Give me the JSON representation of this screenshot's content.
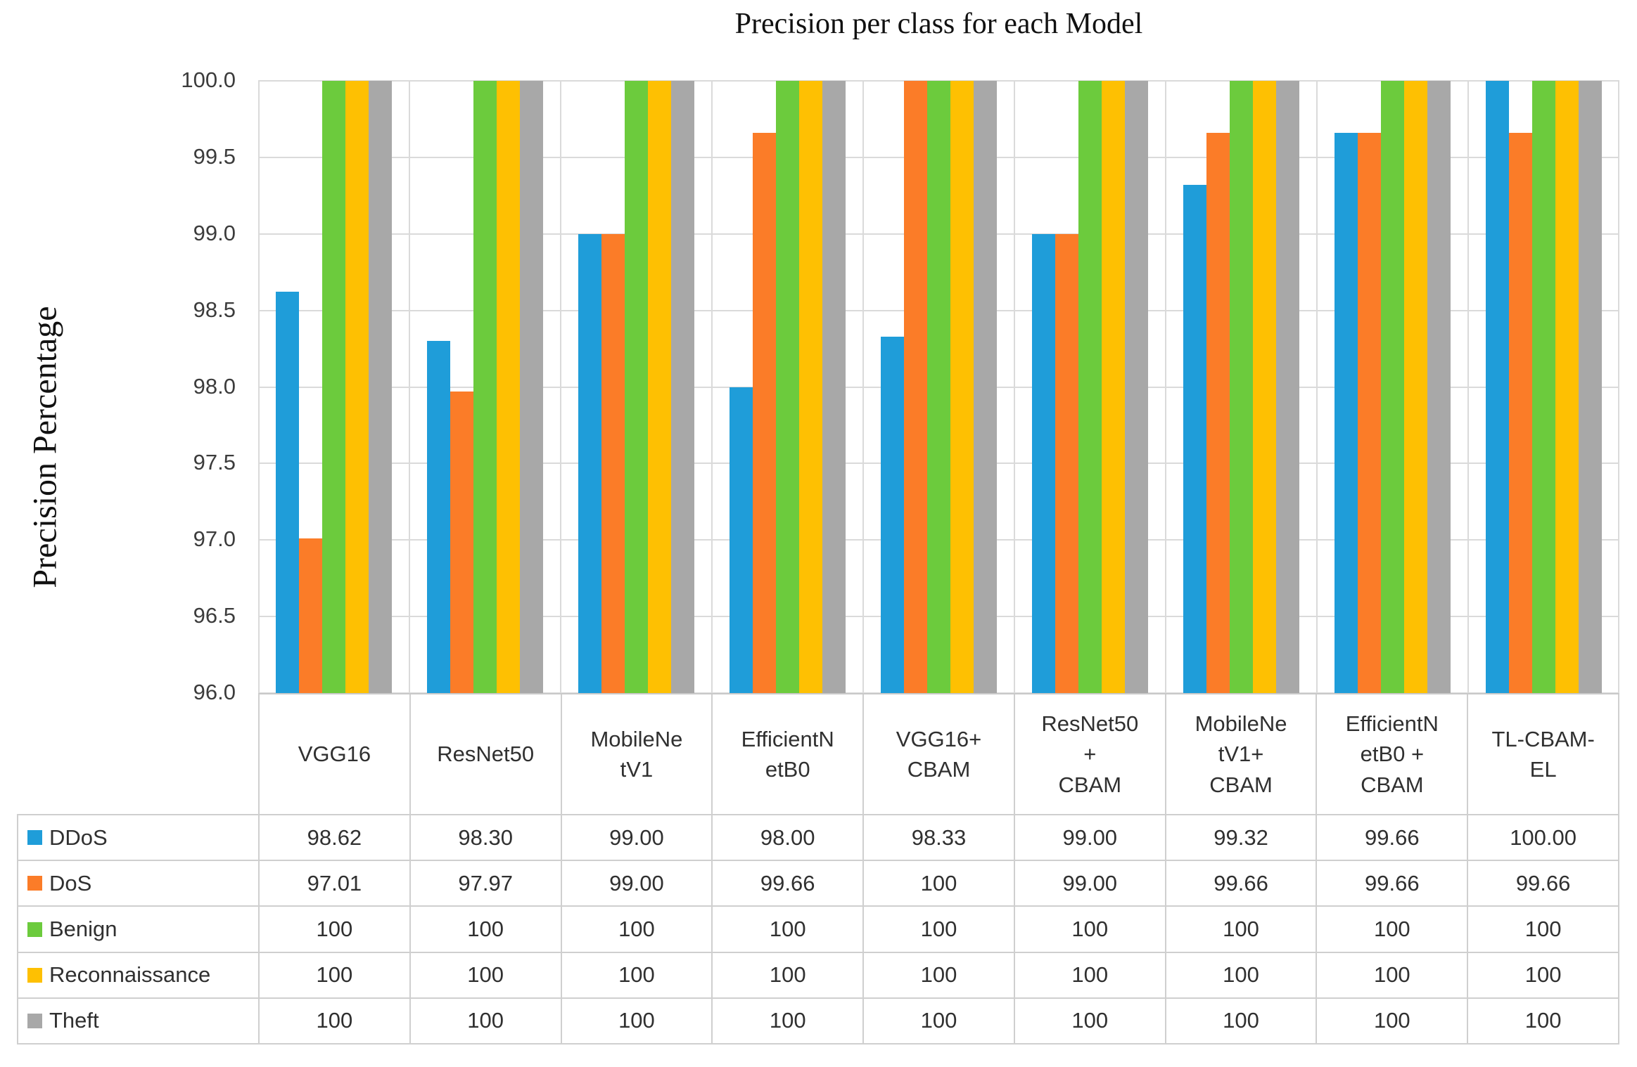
{
  "title": "Precision per class for each Model",
  "y_axis": {
    "label": "Precision Percentage",
    "min": 96.0,
    "max": 100.0,
    "tick_step": 0.5,
    "ticks": [
      "100.0",
      "99.5",
      "99.0",
      "98.5",
      "98.0",
      "97.5",
      "97.0",
      "96.5",
      "96.0"
    ]
  },
  "chart_data": {
    "type": "bar",
    "title": "Precision per class for each Model",
    "xlabel": "",
    "ylabel": "Precision Percentage",
    "ylim": [
      96.0,
      100.0
    ],
    "grid": true,
    "legend_position": "table-left",
    "categories": [
      "VGG16",
      "ResNet50",
      "MobileNetV1",
      "EfficientNetB0",
      "VGG16+CBAM",
      "ResNet50 + CBAM",
      "MobileNetV1+ CBAM",
      "EfficientNetB0 + CBAM",
      "TL-CBAM-EL"
    ],
    "category_display": [
      "VGG16",
      "ResNet50",
      "MobileNe\ntV1",
      "EfficientN\netB0",
      "VGG16+\nCBAM",
      "ResNet50\n+\nCBAM",
      "MobileNe\ntV1+\nCBAM",
      "EfficientN\netB0 +\nCBAM",
      "TL-CBAM-\nEL"
    ],
    "series": [
      {
        "name": "DDoS",
        "color": "#1f9dd9",
        "values": [
          98.62,
          98.3,
          99.0,
          98.0,
          98.33,
          99.0,
          99.32,
          99.66,
          100.0
        ],
        "display": [
          "98.62",
          "98.30",
          "99.00",
          "98.00",
          "98.33",
          "99.00",
          "99.32",
          "99.66",
          "100.00"
        ]
      },
      {
        "name": "DoS",
        "color": "#fb7c28",
        "values": [
          97.01,
          97.97,
          99.0,
          99.66,
          100,
          99.0,
          99.66,
          99.66,
          99.66
        ],
        "display": [
          "97.01",
          "97.97",
          "99.00",
          "99.66",
          "100",
          "99.00",
          "99.66",
          "99.66",
          "99.66"
        ]
      },
      {
        "name": "Benign",
        "color": "#6ccb3d",
        "values": [
          100,
          100,
          100,
          100,
          100,
          100,
          100,
          100,
          100
        ],
        "display": [
          "100",
          "100",
          "100",
          "100",
          "100",
          "100",
          "100",
          "100",
          "100"
        ]
      },
      {
        "name": "Reconnaissance",
        "color": "#fec002",
        "values": [
          100,
          100,
          100,
          100,
          100,
          100,
          100,
          100,
          100
        ],
        "display": [
          "100",
          "100",
          "100",
          "100",
          "100",
          "100",
          "100",
          "100",
          "100"
        ]
      },
      {
        "name": "Theft",
        "color": "#a8a8a8",
        "values": [
          100,
          100,
          100,
          100,
          100,
          100,
          100,
          100,
          100
        ],
        "display": [
          "100",
          "100",
          "100",
          "100",
          "100",
          "100",
          "100",
          "100",
          "100"
        ]
      }
    ]
  }
}
